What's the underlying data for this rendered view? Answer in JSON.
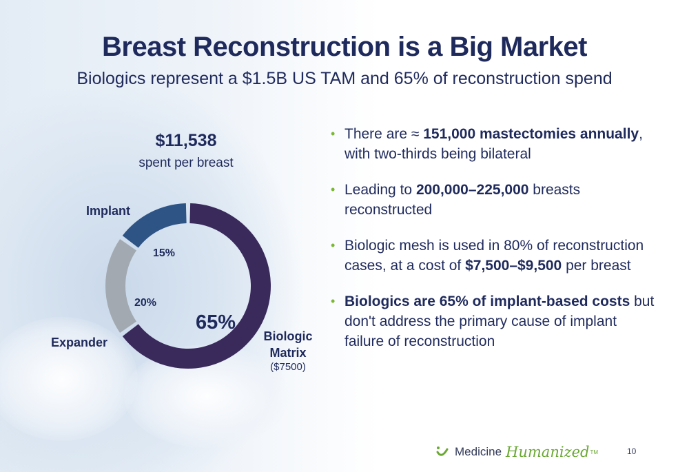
{
  "slide": {
    "title": "Breast Reconstruction is a Big Market",
    "subtitle": "Biologics represent a $1.5B US TAM and 65% of reconstruction spend",
    "page_number": "10"
  },
  "chart_data": {
    "type": "pie",
    "donut": true,
    "total_value": "$11,538",
    "total_caption": "spent per breast",
    "slices": [
      {
        "name": "Biologic Matrix",
        "value": 65,
        "label": "65%",
        "note": "($7500)",
        "color": "#3a2a5c"
      },
      {
        "name": "Expander",
        "value": 20,
        "label": "20%",
        "color": "#a3a9b0"
      },
      {
        "name": "Implant",
        "value": 15,
        "label": "15%",
        "color": "#2e5485"
      }
    ]
  },
  "bullets": [
    {
      "parts": [
        {
          "t": "There are ≈ ",
          "b": false
        },
        {
          "t": "151,000 mastectomies annually",
          "b": true
        },
        {
          "t": ", with two-thirds being bilateral",
          "b": false
        }
      ]
    },
    {
      "parts": [
        {
          "t": "Leading to ",
          "b": false
        },
        {
          "t": "200,000–225,000",
          "b": true
        },
        {
          "t": " breasts reconstructed",
          "b": false
        }
      ]
    },
    {
      "parts": [
        {
          "t": "Biologic mesh is used in 80% of reconstruction cases, at a cost of ",
          "b": false
        },
        {
          "t": "$7,500–$9,500",
          "b": true
        },
        {
          "t": " per breast",
          "b": false
        }
      ]
    },
    {
      "parts": [
        {
          "t": "Biologics are 65% of implant-based costs",
          "b": true
        },
        {
          "t": " but don't address the primary cause of implant failure of reconstruction",
          "b": false
        }
      ]
    }
  ],
  "logo": {
    "word1": "Medicine",
    "word2": "Humanized",
    "trademark": "TM",
    "icon": "smile-icon"
  },
  "colors": {
    "title": "#1f2a5c",
    "bullet": "#7ab833",
    "brand_green": "#6aa833"
  }
}
